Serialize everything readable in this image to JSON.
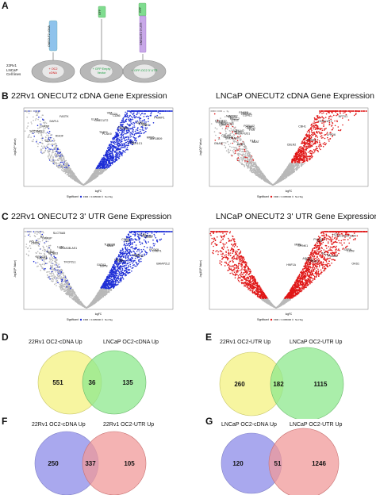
{
  "figure": {
    "panels": {
      "a": {
        "letter": "A",
        "cell_lines_label": "22Rv1\nLNCaP\nCell lines",
        "construct_labels": [
          "ONECUT2 cDNA",
          "GFP",
          "GFP",
          "ONECUT2 3' UTR"
        ],
        "cell_labels": [
          {
            "line1": "+ OC2",
            "line2": "cDNA"
          },
          {
            "line1": "+ GFP Empty",
            "line2": "Vector"
          },
          {
            "line1": "+ GFP-OC2 3' UTR",
            "line2": ""
          }
        ]
      },
      "b": {
        "letter": "B",
        "left_title": "22Rv1 ONECUT2 cDNA Gene Expression",
        "right_title": "LNCaP ONECUT2 cDNA Gene Expression"
      },
      "c": {
        "letter": "C",
        "left_title": "22Rv1 ONECUT2 3' UTR Gene Expression",
        "right_title": "LNCaP ONECUT2 3' UTR Gene Expression"
      }
    },
    "volcano_axes": {
      "xlabel": "logFC",
      "ylabel": "-log10(P Value)",
      "legend_title": "Significant",
      "legend_sig": "FDR < 0.005000",
      "legend_ns": "Not Sig"
    },
    "volcano_labels": {
      "b_left": [
        "CBH1",
        "ONECUT2",
        "CD86",
        "AKR1C1",
        "AKR1B09",
        "PCSK9",
        "CCN3",
        "CDH6",
        "ELF5",
        "CD24",
        "LXN",
        "MPP6",
        "TIMP2",
        "GREM1",
        "SSPN",
        "PMAIP1",
        "VIM",
        "CCG",
        "RHOF",
        "SLCT6A5",
        "CRASP",
        "DAPL1",
        "FASTK"
      ],
      "b_right": [
        "CBH1",
        "ONECUT2",
        "NPTX1",
        "CBLN2",
        "TP53I3",
        "LYPD6",
        "FXR",
        "SPX",
        "CD11",
        "CDHL2",
        "GNAS",
        "SNORA87",
        "HERPUD1",
        "MT1G",
        "LINC01287",
        "HACC2",
        "ZNF808",
        "ABAT",
        "KRT18",
        "SOX2",
        "CPM",
        "FADH1",
        "TACC2",
        "FAM68",
        "KLF",
        "CFLAR",
        "SOHLH2",
        "POR442",
        "DOCK10",
        "MAP2KC",
        "DOK4"
      ],
      "c_left": [
        "CD59",
        "SSPN",
        "DAPL1",
        "CBLN2",
        "CRBT1",
        "MME",
        "VIM",
        "AKR1C1",
        "GATA3",
        "GRIA4",
        "CDH6",
        "PCSK9",
        "TUBB2B",
        "CCN3",
        "ELF5",
        "BAIAP2L2",
        "RSPO4",
        "KCNS3",
        "SEMA3B-AS1",
        "CHGA",
        "GRASP",
        "SLCT6A5",
        "TFCP2L1",
        "SPOCK1",
        "RHOF",
        "LUM",
        "POLA2",
        "A3"
      ],
      "c_right": [
        "CAND2",
        "PGAM2",
        "CD59",
        "SPINK1",
        "ALB",
        "LOC105373334",
        "HNF1A",
        "BGS2",
        "VIL1",
        "SSPN",
        "MME",
        "PLA2G3",
        "HTT",
        "OAS1",
        "ASCB",
        "A2"
      ]
    },
    "venn": [
      {
        "letter": "D",
        "left_label": "22Rv1 OC2-cDNA Up",
        "right_label": "LNCaP OC2-cDNA Up",
        "left_only": "551",
        "overlap": "36",
        "right_only": "135",
        "left_color": "#f7f5a0",
        "right_color": "#8ee88e"
      },
      {
        "letter": "E",
        "left_label": "22Rv1 OC2-UTR Up",
        "right_label": "LNCaP OC2-UTR Up",
        "left_only": "260",
        "overlap": "182",
        "right_only": "1115",
        "left_color": "#f7f5a0",
        "right_color": "#8ee88e"
      },
      {
        "letter": "F",
        "left_label": "22Rv1 OC2-cDNA Up",
        "right_label": "22Rv1 OC2-UTR Up",
        "left_only": "250",
        "overlap": "337",
        "right_only": "105",
        "left_color": "#a9a8ee",
        "right_color": "#f09a9a"
      },
      {
        "letter": "G",
        "left_label": "LNCaP OC2-cDNA Up",
        "right_label": "LNCaP OC2-UTR Up",
        "left_only": "120",
        "overlap": "51",
        "right_only": "1246",
        "left_color": "#a9a8ee",
        "right_color": "#f09a9a"
      }
    ],
    "colors": {
      "blue_sig": "#1f2fd6",
      "red_sig": "#e01818",
      "not_sig": "#b8b8b8"
    }
  }
}
